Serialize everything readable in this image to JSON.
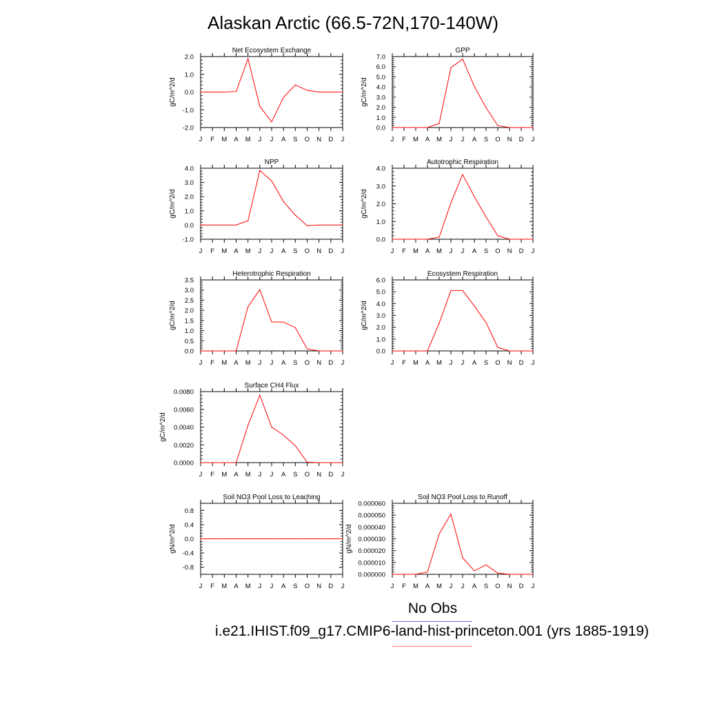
{
  "title": "Alaskan Arctic (66.5-72N,170-140W)",
  "legend": {
    "obs_label": "No Obs",
    "obs_color": "#6a6af0",
    "model_label": "i.e21.IHIST.f09_g17.CMIP6-land-hist-princeton.001 (yrs 1885-1919)",
    "model_color": "#ff7070"
  },
  "series_color": "#ff0000",
  "chart_data": [
    {
      "type": "line",
      "title": "Net Ecosystem Exchange",
      "ylabel": "gC/m^2/d",
      "x": [
        "J",
        "F",
        "M",
        "A",
        "M",
        "J",
        "J",
        "A",
        "S",
        "O",
        "N",
        "D",
        "J"
      ],
      "ylim": [
        -2.0,
        2.0
      ],
      "yticks": [
        "-2.0",
        "-1.0",
        "0.0",
        "1.0",
        "2.0"
      ],
      "values": [
        0.0,
        0.0,
        0.0,
        0.03,
        1.88,
        -0.8,
        -1.68,
        -0.3,
        0.4,
        0.1,
        0.0,
        0.0,
        0.0
      ]
    },
    {
      "type": "line",
      "title": "GPP",
      "ylabel": "gC/m^2/d",
      "x": [
        "J",
        "F",
        "M",
        "A",
        "M",
        "J",
        "J",
        "A",
        "S",
        "O",
        "N",
        "D",
        "J"
      ],
      "ylim": [
        0.0,
        7.0
      ],
      "yticks": [
        "0.0",
        "1.0",
        "2.0",
        "3.0",
        "4.0",
        "5.0",
        "6.0",
        "7.0"
      ],
      "values": [
        0.0,
        0.0,
        0.0,
        0.0,
        0.4,
        5.9,
        6.75,
        4.05,
        1.95,
        0.2,
        0.0,
        0.0,
        0.0
      ]
    },
    {
      "type": "line",
      "title": "NPP",
      "ylabel": "gC/m^2/d",
      "x": [
        "J",
        "F",
        "M",
        "A",
        "M",
        "J",
        "J",
        "A",
        "S",
        "O",
        "N",
        "D",
        "J"
      ],
      "ylim": [
        -1.0,
        4.0
      ],
      "yticks": [
        "-1.0",
        "0.0",
        "1.0",
        "2.0",
        "3.0",
        "4.0"
      ],
      "values": [
        0.0,
        0.0,
        0.0,
        0.0,
        0.3,
        3.85,
        3.1,
        1.65,
        0.7,
        -0.05,
        0.0,
        0.0,
        0.0
      ]
    },
    {
      "type": "line",
      "title": "Autotrophic Respiration",
      "ylabel": "gC/m^2/d",
      "x": [
        "J",
        "F",
        "M",
        "A",
        "M",
        "J",
        "J",
        "A",
        "S",
        "O",
        "N",
        "D",
        "J"
      ],
      "ylim": [
        0.0,
        4.0
      ],
      "yticks": [
        "0.0",
        "1.0",
        "2.0",
        "3.0",
        "4.0"
      ],
      "values": [
        0.0,
        0.0,
        0.0,
        0.0,
        0.12,
        2.05,
        3.65,
        2.4,
        1.25,
        0.2,
        0.0,
        0.0,
        0.0
      ]
    },
    {
      "type": "line",
      "title": "Heterotrophic Respiration",
      "ylabel": "gC/m^2/d",
      "x": [
        "J",
        "F",
        "M",
        "A",
        "M",
        "J",
        "J",
        "A",
        "S",
        "O",
        "N",
        "D",
        "J"
      ],
      "ylim": [
        0.0,
        3.5
      ],
      "yticks": [
        "0.0",
        "0.5",
        "1.0",
        "1.5",
        "2.0",
        "2.5",
        "3.0",
        "3.5"
      ],
      "values": [
        0.0,
        0.0,
        0.0,
        0.0,
        2.18,
        3.02,
        1.43,
        1.42,
        1.15,
        0.1,
        0.0,
        0.0,
        0.0
      ]
    },
    {
      "type": "line",
      "title": "Ecosystem Respiration",
      "ylabel": "gC/m^2/d",
      "x": [
        "J",
        "F",
        "M",
        "A",
        "M",
        "J",
        "J",
        "A",
        "S",
        "O",
        "N",
        "D",
        "J"
      ],
      "ylim": [
        0.0,
        6.0
      ],
      "yticks": [
        "0.0",
        "1.0",
        "2.0",
        "3.0",
        "4.0",
        "5.0",
        "6.0"
      ],
      "values": [
        0.0,
        0.0,
        0.0,
        0.0,
        2.35,
        5.1,
        5.1,
        3.8,
        2.4,
        0.3,
        0.0,
        0.0,
        0.0
      ]
    },
    {
      "type": "line",
      "title": "Surface CH4 Flux",
      "ylabel": "gC/m^2/d",
      "x": [
        "J",
        "F",
        "M",
        "A",
        "M",
        "J",
        "J",
        "A",
        "S",
        "O",
        "N",
        "D",
        "J"
      ],
      "ylim": [
        0.0,
        0.008
      ],
      "yticks": [
        "0.0000",
        "0.0020",
        "0.0040",
        "0.0060",
        "0.0080"
      ],
      "values": [
        0.0,
        0.0,
        0.0,
        0.0,
        0.0042,
        0.0076,
        0.004,
        0.0031,
        0.0019,
        5e-05,
        0.0,
        0.0,
        0.0
      ]
    },
    {
      "type": "line",
      "title": "Soil NO3 Pool Loss to Leaching",
      "ylabel": "gN/m^2/d",
      "x": [
        "J",
        "F",
        "M",
        "A",
        "M",
        "J",
        "J",
        "A",
        "S",
        "O",
        "N",
        "D",
        "J"
      ],
      "ylim": [
        -1.0,
        1.0
      ],
      "yticks": [
        "-0.8",
        "-0.4",
        "0.0",
        "0.4",
        "0.8"
      ],
      "values": [
        0.0,
        0.0,
        0.0,
        0.0,
        0.0,
        0.0,
        0.0,
        0.0,
        0.0,
        0.0,
        0.0,
        0.0,
        0.0
      ]
    },
    {
      "type": "line",
      "title": "Soil NO3 Pool Loss to Runoff",
      "ylabel": "gN/m^2/d",
      "x": [
        "J",
        "F",
        "M",
        "A",
        "M",
        "J",
        "J",
        "A",
        "S",
        "O",
        "N",
        "D",
        "J"
      ],
      "ylim": [
        0.0,
        6e-05
      ],
      "yticks": [
        "0.000000",
        "0.000010",
        "0.000020",
        "0.000030",
        "0.000040",
        "0.000050",
        "0.000060"
      ],
      "values": [
        0.0,
        0.0,
        0.0,
        2e-06,
        3.4e-05,
        5.1e-05,
        1.4e-05,
        3e-06,
        8e-06,
        1e-06,
        0.0,
        0.0,
        0.0
      ]
    }
  ]
}
